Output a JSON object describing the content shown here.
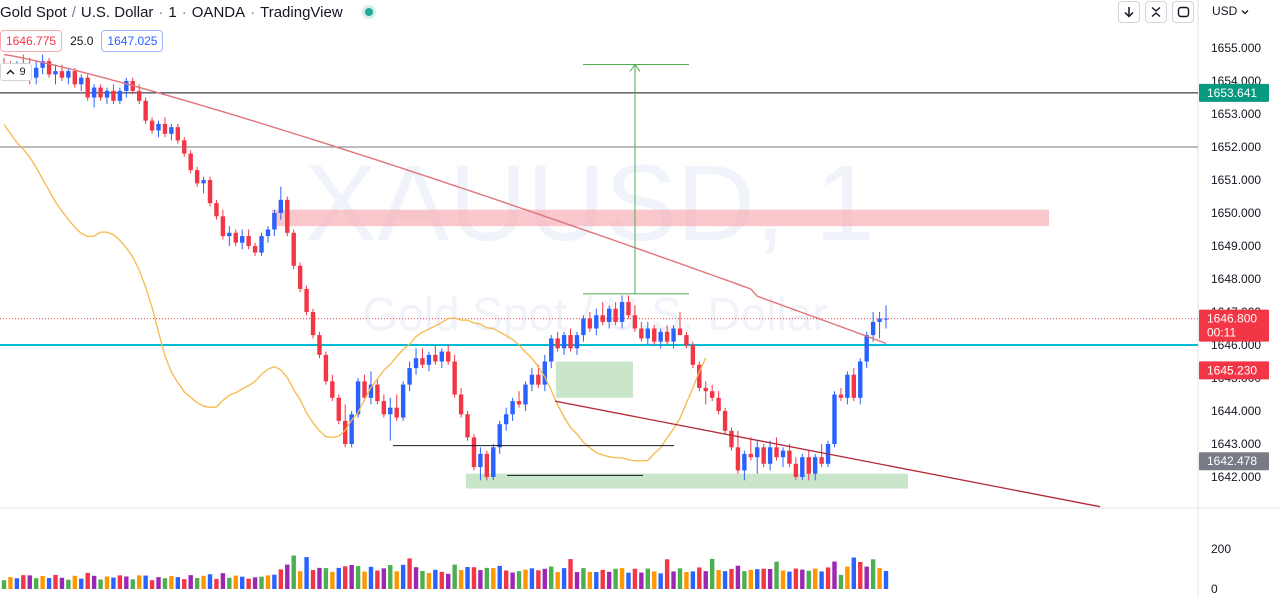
{
  "header": {
    "symbol": "Gold Spot",
    "currency": "U.S. Dollar",
    "interval": "1",
    "exchange": "OANDA",
    "platform": "TradingView",
    "separator": "/",
    "dot_sep": "·",
    "status_color": "#22ab94"
  },
  "quote": {
    "sell": "1646.775",
    "spread": "25.0",
    "buy": "1647.025"
  },
  "toolbar": {
    "currency_label": "USD",
    "icons": [
      "arrow-down-icon",
      "collapse-icon",
      "fullscreen-icon"
    ]
  },
  "indicator_toggle": {
    "label": "9"
  },
  "watermark": {
    "line1": "XAUUSD, 1",
    "line2": "Gold Spot / U.S. Dollar"
  },
  "chart_data": {
    "type": "candlestick",
    "y_ticks": [
      "1655.000",
      "1654.000",
      "1653.000",
      "1652.000",
      "1651.000",
      "1650.000",
      "1649.000",
      "1648.000",
      "1647.000",
      "1646.000",
      "1645.000",
      "1644.000",
      "1643.000",
      "1642.000"
    ],
    "y_range": [
      1641.5,
      1655.8
    ],
    "bar_count": 138,
    "volume_ticks": [
      "200",
      "0"
    ],
    "price_tags": [
      {
        "label": "1653.641",
        "value": 1653.641,
        "color": "#089981"
      },
      {
        "label": "1646.800",
        "value": 1646.8,
        "color": "#f23645",
        "countdown": "00:11"
      },
      {
        "label": "1645.230",
        "value": 1645.23,
        "color": "#f23645"
      },
      {
        "label": "1642.478",
        "value": 1642.478,
        "color": "#787b86"
      }
    ],
    "horizontal_lines": [
      {
        "value": 1653.641,
        "color": "#131722"
      },
      {
        "value": 1652.0,
        "color": "#787b86"
      },
      {
        "value": 1646.0,
        "color": "#00bcd4"
      }
    ],
    "moving_averages": [
      {
        "period": "slow",
        "color": "#e0737b"
      },
      {
        "period": "fast",
        "color": "#f5b94a"
      }
    ],
    "candle_colors": {
      "up": "#2962ff",
      "down": "#f23645"
    },
    "volume_colors": [
      "#4caf50",
      "#ff9800",
      "#2962ff",
      "#f23645",
      "#9c27b0",
      "#e91e63"
    ],
    "candles": [
      [
        1654.5,
        1654.7,
        1654.2,
        1654.4
      ],
      [
        1654.4,
        1654.6,
        1654.1,
        1654.3
      ],
      [
        1654.3,
        1654.6,
        1654.0,
        1654.5
      ],
      [
        1654.5,
        1654.8,
        1654.2,
        1654.3
      ],
      [
        1654.3,
        1654.7,
        1653.9,
        1654.1
      ],
      [
        1654.1,
        1654.6,
        1653.9,
        1654.4
      ],
      [
        1654.4,
        1654.8,
        1654.2,
        1654.6
      ],
      [
        1654.6,
        1654.7,
        1654.1,
        1654.2
      ],
      [
        1654.2,
        1654.5,
        1653.9,
        1654.3
      ],
      [
        1654.3,
        1654.5,
        1654.0,
        1654.1
      ],
      [
        1654.1,
        1654.4,
        1653.9,
        1654.3
      ],
      [
        1654.3,
        1654.4,
        1653.8,
        1653.9
      ],
      [
        1653.9,
        1654.2,
        1653.7,
        1654.1
      ],
      [
        1654.1,
        1654.2,
        1653.4,
        1653.5
      ],
      [
        1653.5,
        1653.9,
        1653.2,
        1653.8
      ],
      [
        1653.8,
        1653.9,
        1653.4,
        1653.5
      ],
      [
        1653.5,
        1653.8,
        1653.3,
        1653.7
      ],
      [
        1653.7,
        1653.9,
        1653.3,
        1653.4
      ],
      [
        1653.4,
        1653.8,
        1653.3,
        1653.7
      ],
      [
        1653.7,
        1654.1,
        1653.5,
        1654.0
      ],
      [
        1654.0,
        1654.1,
        1653.6,
        1653.7
      ],
      [
        1653.7,
        1653.9,
        1653.3,
        1653.4
      ],
      [
        1653.4,
        1653.5,
        1652.7,
        1652.8
      ],
      [
        1652.8,
        1652.9,
        1652.4,
        1652.5
      ],
      [
        1652.5,
        1652.8,
        1652.3,
        1652.7
      ],
      [
        1652.7,
        1652.9,
        1652.3,
        1652.4
      ],
      [
        1652.4,
        1652.7,
        1652.2,
        1652.6
      ],
      [
        1652.6,
        1652.7,
        1652.1,
        1652.2
      ],
      [
        1652.2,
        1652.3,
        1651.7,
        1651.8
      ],
      [
        1651.8,
        1651.9,
        1651.2,
        1651.3
      ],
      [
        1651.3,
        1651.4,
        1650.8,
        1650.9
      ],
      [
        1650.9,
        1651.1,
        1650.6,
        1651.0
      ],
      [
        1651.0,
        1651.1,
        1650.2,
        1650.3
      ],
      [
        1650.3,
        1650.4,
        1649.8,
        1649.9
      ],
      [
        1649.9,
        1650.1,
        1649.2,
        1649.3
      ],
      [
        1649.3,
        1649.6,
        1649.0,
        1649.4
      ],
      [
        1649.4,
        1649.5,
        1649.0,
        1649.1
      ],
      [
        1649.1,
        1649.5,
        1648.9,
        1649.3
      ],
      [
        1649.3,
        1649.5,
        1648.9,
        1649.0
      ],
      [
        1649.0,
        1649.1,
        1648.7,
        1648.8
      ],
      [
        1648.8,
        1649.4,
        1648.7,
        1649.3
      ],
      [
        1649.3,
        1649.6,
        1649.1,
        1649.5
      ],
      [
        1649.5,
        1650.1,
        1649.3,
        1650.0
      ],
      [
        1650.0,
        1650.8,
        1649.8,
        1650.4
      ],
      [
        1650.4,
        1650.5,
        1649.3,
        1649.4
      ],
      [
        1649.4,
        1649.5,
        1648.3,
        1648.4
      ],
      [
        1648.4,
        1648.5,
        1647.6,
        1647.7
      ],
      [
        1647.7,
        1647.8,
        1646.9,
        1647.0
      ],
      [
        1647.0,
        1647.1,
        1646.2,
        1646.3
      ],
      [
        1646.3,
        1646.4,
        1645.6,
        1645.7
      ],
      [
        1645.7,
        1645.8,
        1644.8,
        1644.9
      ],
      [
        1644.9,
        1645.1,
        1644.3,
        1644.4
      ],
      [
        1644.4,
        1644.5,
        1643.6,
        1643.7
      ],
      [
        1643.7,
        1644.2,
        1642.9,
        1643.0
      ],
      [
        1643.0,
        1644.0,
        1642.9,
        1643.9
      ],
      [
        1643.9,
        1645.0,
        1643.8,
        1644.9
      ],
      [
        1644.9,
        1645.1,
        1644.3,
        1644.4
      ],
      [
        1644.4,
        1645.2,
        1644.2,
        1644.8
      ],
      [
        1644.8,
        1645.0,
        1644.2,
        1644.3
      ],
      [
        1644.3,
        1644.5,
        1643.8,
        1643.9
      ],
      [
        1643.9,
        1644.4,
        1643.1,
        1644.1
      ],
      [
        1644.1,
        1644.5,
        1643.7,
        1643.8
      ],
      [
        1643.8,
        1644.9,
        1643.7,
        1644.8
      ],
      [
        1644.8,
        1645.5,
        1644.6,
        1645.3
      ],
      [
        1645.3,
        1645.9,
        1645.1,
        1645.6
      ],
      [
        1645.6,
        1645.9,
        1645.3,
        1645.4
      ],
      [
        1645.4,
        1645.8,
        1645.2,
        1645.7
      ],
      [
        1645.7,
        1646.0,
        1645.4,
        1645.5
      ],
      [
        1645.5,
        1645.9,
        1645.3,
        1645.8
      ],
      [
        1645.8,
        1646.0,
        1645.4,
        1645.5
      ],
      [
        1645.5,
        1645.7,
        1644.4,
        1644.5
      ],
      [
        1644.5,
        1644.7,
        1643.8,
        1643.9
      ],
      [
        1643.9,
        1644.0,
        1643.1,
        1643.2
      ],
      [
        1643.2,
        1643.3,
        1642.2,
        1642.3
      ],
      [
        1642.3,
        1642.9,
        1641.9,
        1642.7
      ],
      [
        1642.7,
        1642.8,
        1641.9,
        1642.0
      ],
      [
        1642.0,
        1643.0,
        1641.9,
        1642.9
      ],
      [
        1642.9,
        1643.7,
        1642.7,
        1643.6
      ],
      [
        1643.6,
        1644.1,
        1643.4,
        1643.9
      ],
      [
        1643.9,
        1644.4,
        1643.7,
        1644.3
      ],
      [
        1644.3,
        1644.6,
        1644.1,
        1644.2
      ],
      [
        1644.2,
        1644.9,
        1644.0,
        1644.8
      ],
      [
        1644.8,
        1645.3,
        1644.6,
        1645.1
      ],
      [
        1645.1,
        1645.4,
        1644.7,
        1644.8
      ],
      [
        1644.8,
        1645.7,
        1644.6,
        1645.5
      ],
      [
        1645.5,
        1646.3,
        1645.3,
        1646.2
      ],
      [
        1646.2,
        1646.4,
        1645.8,
        1645.9
      ],
      [
        1645.9,
        1646.4,
        1645.7,
        1646.3
      ],
      [
        1646.3,
        1646.5,
        1645.8,
        1645.9
      ],
      [
        1645.9,
        1646.4,
        1645.7,
        1646.3
      ],
      [
        1646.3,
        1646.9,
        1646.1,
        1646.8
      ],
      [
        1646.8,
        1647.0,
        1646.4,
        1646.5
      ],
      [
        1646.5,
        1647.1,
        1646.3,
        1646.9
      ],
      [
        1646.9,
        1647.3,
        1646.6,
        1646.7
      ],
      [
        1646.7,
        1647.2,
        1646.5,
        1647.1
      ],
      [
        1647.1,
        1647.3,
        1646.6,
        1646.7
      ],
      [
        1646.7,
        1647.5,
        1646.5,
        1647.3
      ],
      [
        1647.3,
        1647.5,
        1646.8,
        1646.9
      ],
      [
        1646.9,
        1647.2,
        1646.4,
        1646.5
      ],
      [
        1646.5,
        1646.7,
        1646.1,
        1646.2
      ],
      [
        1646.2,
        1646.7,
        1646.0,
        1646.5
      ],
      [
        1646.5,
        1646.6,
        1646.0,
        1646.1
      ],
      [
        1646.1,
        1646.5,
        1645.9,
        1646.4
      ],
      [
        1646.4,
        1646.6,
        1646.0,
        1646.1
      ],
      [
        1646.1,
        1646.6,
        1645.9,
        1646.5
      ],
      [
        1646.5,
        1647.0,
        1646.3,
        1646.3
      ],
      [
        1646.3,
        1646.4,
        1645.9,
        1646.0
      ],
      [
        1646.0,
        1646.1,
        1645.3,
        1645.4
      ],
      [
        1645.4,
        1645.5,
        1644.6,
        1644.7
      ],
      [
        1644.7,
        1644.9,
        1644.2,
        1644.6
      ],
      [
        1644.6,
        1644.8,
        1644.3,
        1644.4
      ],
      [
        1644.4,
        1644.6,
        1643.9,
        1644.0
      ],
      [
        1644.0,
        1644.1,
        1643.3,
        1643.4
      ],
      [
        1643.4,
        1643.5,
        1642.8,
        1642.9
      ],
      [
        1642.9,
        1643.4,
        1642.1,
        1642.2
      ],
      [
        1642.2,
        1642.8,
        1641.9,
        1642.7
      ],
      [
        1642.7,
        1643.2,
        1642.5,
        1642.6
      ],
      [
        1642.6,
        1643.1,
        1642.1,
        1642.9
      ],
      [
        1642.9,
        1643.0,
        1642.3,
        1642.4
      ],
      [
        1642.4,
        1643.1,
        1642.2,
        1642.9
      ],
      [
        1642.9,
        1643.2,
        1642.5,
        1642.6
      ],
      [
        1642.6,
        1642.9,
        1642.3,
        1642.8
      ],
      [
        1642.8,
        1643.0,
        1642.3,
        1642.4
      ],
      [
        1642.4,
        1642.6,
        1641.9,
        1642.0
      ],
      [
        1642.0,
        1642.7,
        1641.9,
        1642.6
      ],
      [
        1642.6,
        1642.8,
        1641.9,
        1642.1
      ],
      [
        1642.1,
        1642.7,
        1641.9,
        1642.6
      ],
      [
        1642.6,
        1643.0,
        1642.3,
        1642.4
      ],
      [
        1642.4,
        1643.1,
        1642.3,
        1643.0
      ],
      [
        1643.0,
        1644.6,
        1642.9,
        1644.5
      ],
      [
        1644.5,
        1644.7,
        1644.3,
        1644.4
      ],
      [
        1644.4,
        1645.2,
        1644.2,
        1645.1
      ],
      [
        1645.1,
        1645.3,
        1644.3,
        1644.4
      ],
      [
        1644.4,
        1645.6,
        1644.2,
        1645.5
      ],
      [
        1645.5,
        1646.4,
        1645.3,
        1646.3
      ],
      [
        1646.3,
        1647.0,
        1646.1,
        1646.7
      ],
      [
        1646.7,
        1647.0,
        1646.2,
        1646.8
      ],
      [
        1646.8,
        1647.2,
        1646.5,
        1646.8
      ]
    ]
  }
}
